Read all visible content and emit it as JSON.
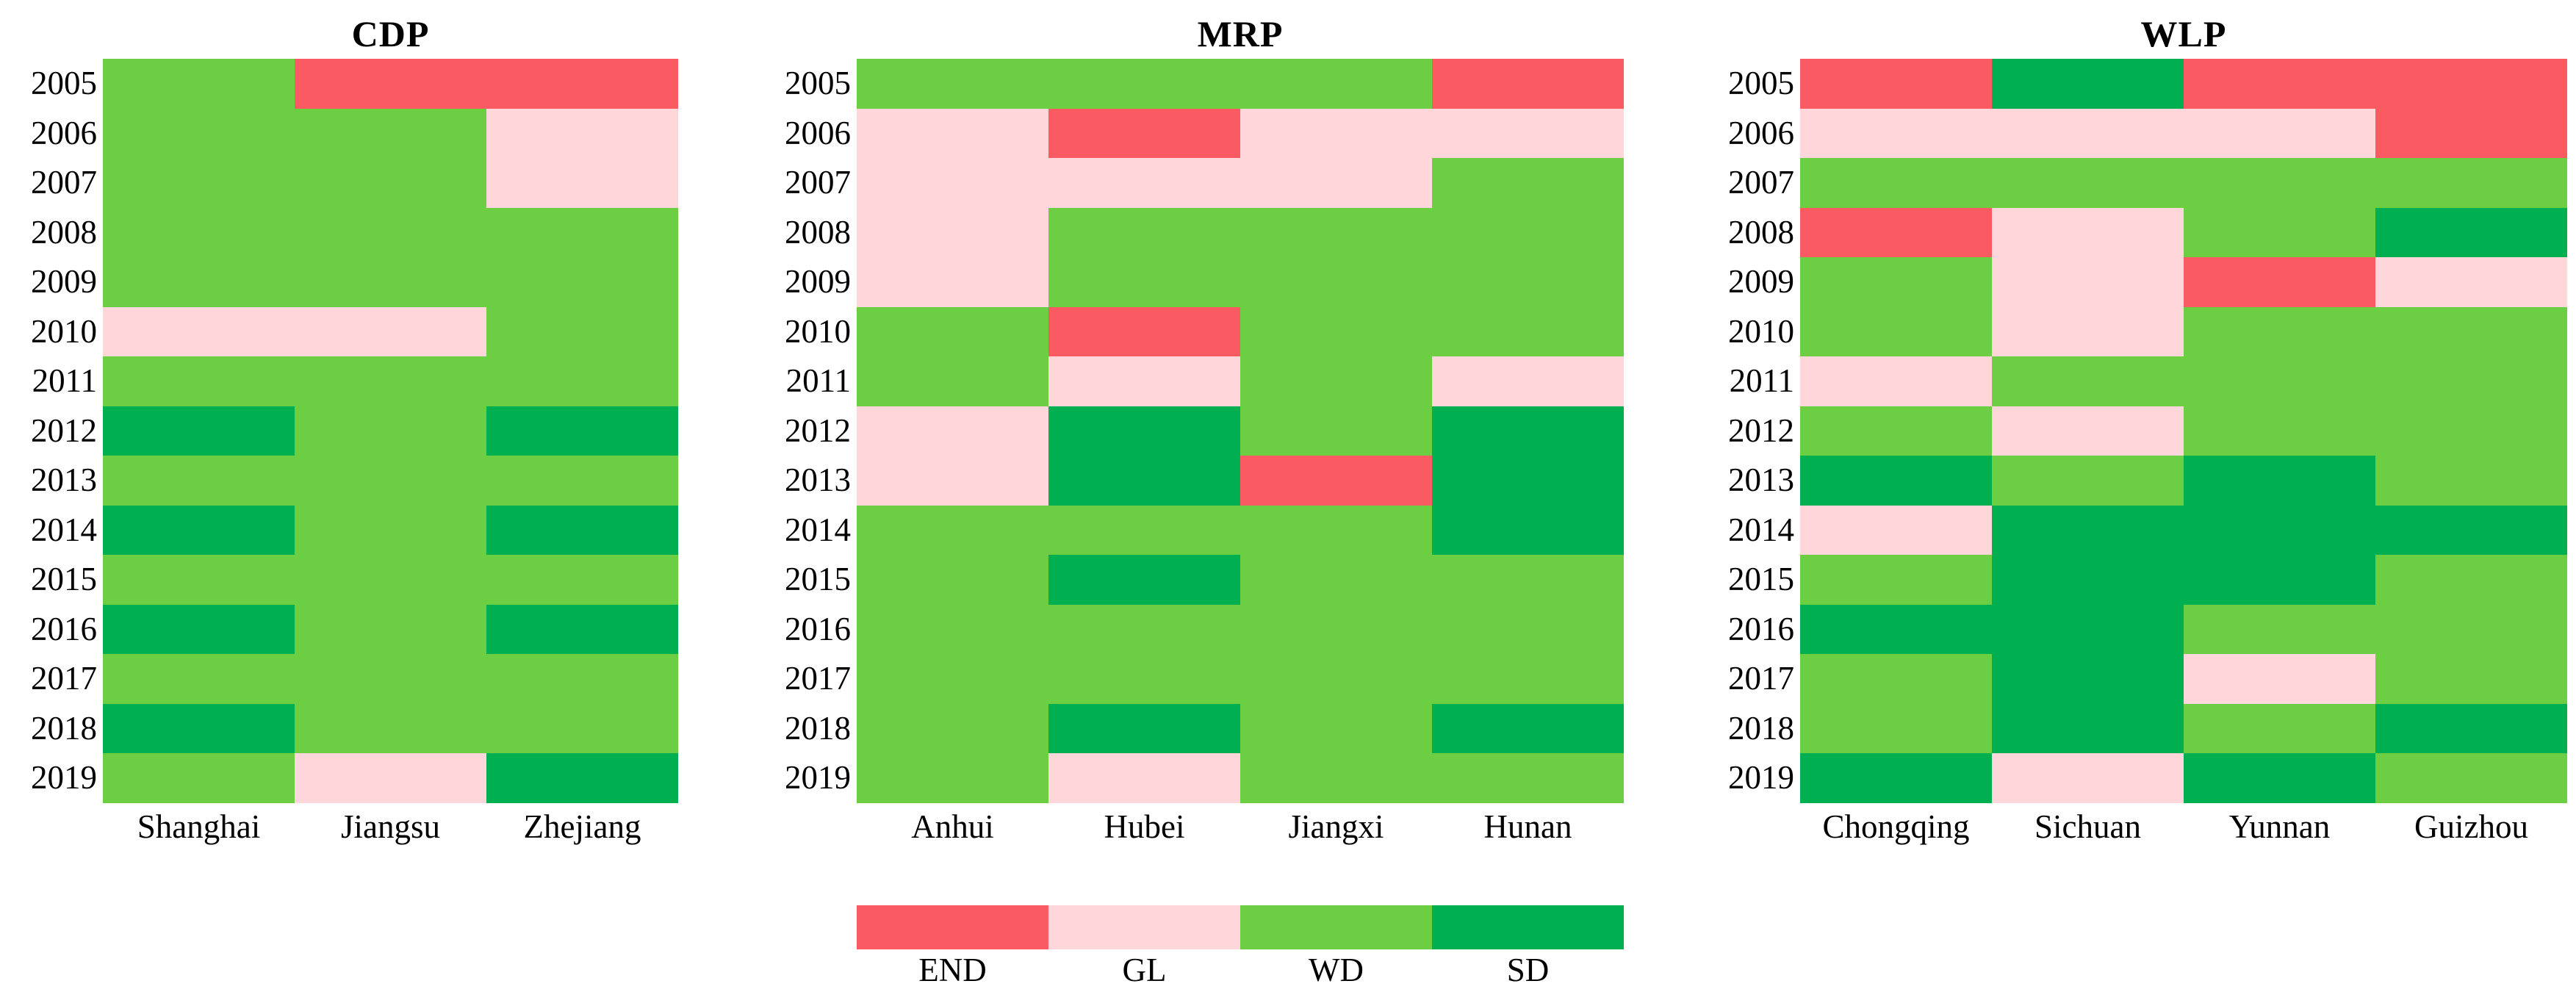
{
  "figure": {
    "background": "#ffffff",
    "text_color": "#000000"
  },
  "colors": {
    "END": "#FA5A61",
    "GL": "#FFD6D9",
    "WD": "#6CCE43",
    "SD": "#00AF4F"
  },
  "legend": {
    "position": "bottom-center",
    "items": [
      {
        "label": "END",
        "category": "END"
      },
      {
        "label": "GL",
        "category": "GL"
      },
      {
        "label": "WD",
        "category": "WD"
      },
      {
        "label": "SD",
        "category": "SD"
      }
    ]
  },
  "chart_data": [
    {
      "type": "heatmap",
      "title": "CDP",
      "x_categories": [
        "Shanghai",
        "Jiangsu",
        "Zhejiang"
      ],
      "y_categories": [
        "2005",
        "2006",
        "2007",
        "2008",
        "2009",
        "2010",
        "2011",
        "2012",
        "2013",
        "2014",
        "2015",
        "2016",
        "2017",
        "2018",
        "2019"
      ],
      "value_domain": [
        "END",
        "GL",
        "WD",
        "SD"
      ],
      "grid": false,
      "values": [
        [
          "WD",
          "END",
          "END"
        ],
        [
          "WD",
          "WD",
          "GL"
        ],
        [
          "WD",
          "WD",
          "GL"
        ],
        [
          "WD",
          "WD",
          "WD"
        ],
        [
          "WD",
          "WD",
          "WD"
        ],
        [
          "GL",
          "GL",
          "WD"
        ],
        [
          "WD",
          "WD",
          "WD"
        ],
        [
          "SD",
          "WD",
          "SD"
        ],
        [
          "WD",
          "WD",
          "WD"
        ],
        [
          "SD",
          "WD",
          "SD"
        ],
        [
          "WD",
          "WD",
          "WD"
        ],
        [
          "SD",
          "WD",
          "SD"
        ],
        [
          "WD",
          "WD",
          "WD"
        ],
        [
          "SD",
          "WD",
          "WD"
        ],
        [
          "WD",
          "GL",
          "SD"
        ]
      ]
    },
    {
      "type": "heatmap",
      "title": "MRP",
      "x_categories": [
        "Anhui",
        "Hubei",
        "Jiangxi",
        "Hunan"
      ],
      "y_categories": [
        "2005",
        "2006",
        "2007",
        "2008",
        "2009",
        "2010",
        "2011",
        "2012",
        "2013",
        "2014",
        "2015",
        "2016",
        "2017",
        "2018",
        "2019"
      ],
      "value_domain": [
        "END",
        "GL",
        "WD",
        "SD"
      ],
      "grid": false,
      "values": [
        [
          "WD",
          "WD",
          "WD",
          "END"
        ],
        [
          "GL",
          "END",
          "GL",
          "GL"
        ],
        [
          "GL",
          "GL",
          "GL",
          "WD"
        ],
        [
          "GL",
          "WD",
          "WD",
          "WD"
        ],
        [
          "GL",
          "WD",
          "WD",
          "WD"
        ],
        [
          "WD",
          "END",
          "WD",
          "WD"
        ],
        [
          "WD",
          "GL",
          "WD",
          "GL"
        ],
        [
          "GL",
          "SD",
          "WD",
          "SD"
        ],
        [
          "GL",
          "SD",
          "END",
          "SD"
        ],
        [
          "WD",
          "WD",
          "WD",
          "SD"
        ],
        [
          "WD",
          "SD",
          "WD",
          "WD"
        ],
        [
          "WD",
          "WD",
          "WD",
          "WD"
        ],
        [
          "WD",
          "WD",
          "WD",
          "WD"
        ],
        [
          "WD",
          "SD",
          "WD",
          "SD"
        ],
        [
          "WD",
          "GL",
          "WD",
          "WD"
        ]
      ]
    },
    {
      "type": "heatmap",
      "title": "WLP",
      "x_categories": [
        "Chongqing",
        "Sichuan",
        "Yunnan",
        "Guizhou"
      ],
      "y_categories": [
        "2005",
        "2006",
        "2007",
        "2008",
        "2009",
        "2010",
        "2011",
        "2012",
        "2013",
        "2014",
        "2015",
        "2016",
        "2017",
        "2018",
        "2019"
      ],
      "value_domain": [
        "END",
        "GL",
        "WD",
        "SD"
      ],
      "grid": false,
      "values": [
        [
          "END",
          "SD",
          "END",
          "END"
        ],
        [
          "GL",
          "GL",
          "GL",
          "END"
        ],
        [
          "WD",
          "WD",
          "WD",
          "WD"
        ],
        [
          "END",
          "GL",
          "WD",
          "SD"
        ],
        [
          "WD",
          "GL",
          "END",
          "GL"
        ],
        [
          "WD",
          "GL",
          "WD",
          "WD"
        ],
        [
          "GL",
          "WD",
          "WD",
          "WD"
        ],
        [
          "WD",
          "GL",
          "WD",
          "WD"
        ],
        [
          "SD",
          "WD",
          "SD",
          "WD"
        ],
        [
          "GL",
          "SD",
          "SD",
          "SD"
        ],
        [
          "WD",
          "SD",
          "SD",
          "WD"
        ],
        [
          "SD",
          "SD",
          "WD",
          "WD"
        ],
        [
          "WD",
          "SD",
          "GL",
          "WD"
        ],
        [
          "WD",
          "SD",
          "WD",
          "SD"
        ],
        [
          "SD",
          "GL",
          "SD",
          "WD"
        ]
      ]
    }
  ]
}
